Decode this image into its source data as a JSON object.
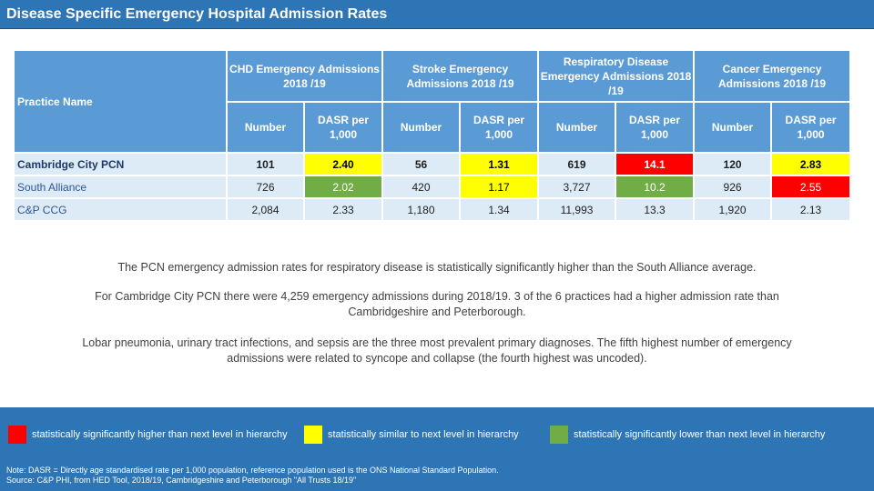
{
  "title": "Disease Specific Emergency Hospital Admission Rates",
  "table": {
    "practice_header": "Practice Name",
    "groups": [
      {
        "label": "CHD Emergency Admissions 2018 /19"
      },
      {
        "label": "Stroke Emergency Admissions 2018 /19"
      },
      {
        "label": "Respiratory Disease Emergency Admissions 2018 /19"
      },
      {
        "label": "Cancer Emergency Admissions 2018 /19"
      }
    ],
    "sub_number": "Number",
    "sub_dasr": "DASR per 1,000",
    "rows": [
      {
        "name": "Cambridge City PCN",
        "cells": [
          {
            "v": "101",
            "c": ""
          },
          {
            "v": "2.40",
            "c": "yellow"
          },
          {
            "v": "56",
            "c": ""
          },
          {
            "v": "1.31",
            "c": "yellow"
          },
          {
            "v": "619",
            "c": ""
          },
          {
            "v": "14.1",
            "c": "red"
          },
          {
            "v": "120",
            "c": ""
          },
          {
            "v": "2.83",
            "c": "yellow"
          }
        ]
      },
      {
        "name": "South Alliance",
        "cells": [
          {
            "v": "726",
            "c": ""
          },
          {
            "v": "2.02",
            "c": "green"
          },
          {
            "v": "420",
            "c": ""
          },
          {
            "v": "1.17",
            "c": "yellow"
          },
          {
            "v": "3,727",
            "c": ""
          },
          {
            "v": "10.2",
            "c": "green"
          },
          {
            "v": "926",
            "c": ""
          },
          {
            "v": "2.55",
            "c": "red"
          }
        ]
      },
      {
        "name": "C&P CCG",
        "cells": [
          {
            "v": "2,084",
            "c": ""
          },
          {
            "v": "2.33",
            "c": ""
          },
          {
            "v": "1,180",
            "c": ""
          },
          {
            "v": "1.34",
            "c": ""
          },
          {
            "v": "11,993",
            "c": ""
          },
          {
            "v": "13.3",
            "c": ""
          },
          {
            "v": "1,920",
            "c": ""
          },
          {
            "v": "2.13",
            "c": ""
          }
        ]
      }
    ]
  },
  "narrative": {
    "p1": "The PCN emergency admission rates for respiratory disease is statistically significantly higher than the South Alliance average.",
    "p2": "For Cambridge City PCN there were 4,259 emergency admissions during 2018/19. 3 of the 6 practices had a higher admission rate than Cambridgeshire and Peterborough.",
    "p3": "Lobar pneumonia, urinary tract infections, and sepsis are the three most prevalent primary diagnoses. The fifth highest number of emergency admissions were related to syncope and collapse (the fourth highest was uncoded)."
  },
  "legend": {
    "red": "statistically significantly higher than next level in hierarchy",
    "yellow": "statistically similar to next level in hierarchy",
    "green": "statistically significantly lower than next level in hierarchy"
  },
  "notes": {
    "line1": "Note: DASR = Directly age standardised rate per 1,000 population, reference population used is the ONS National Standard Population.",
    "line2": "Source: C&P PHI, from HED Tool, 2018/19, Cambridgeshire and Peterborough \"All Trusts 18/19\""
  },
  "colors": {
    "title_bar": "#2e75b6",
    "header_fill": "#5b9bd5",
    "row_fill": "#ddebf7",
    "red": "#ff0000",
    "yellow": "#ffff00",
    "green": "#70ad47"
  }
}
